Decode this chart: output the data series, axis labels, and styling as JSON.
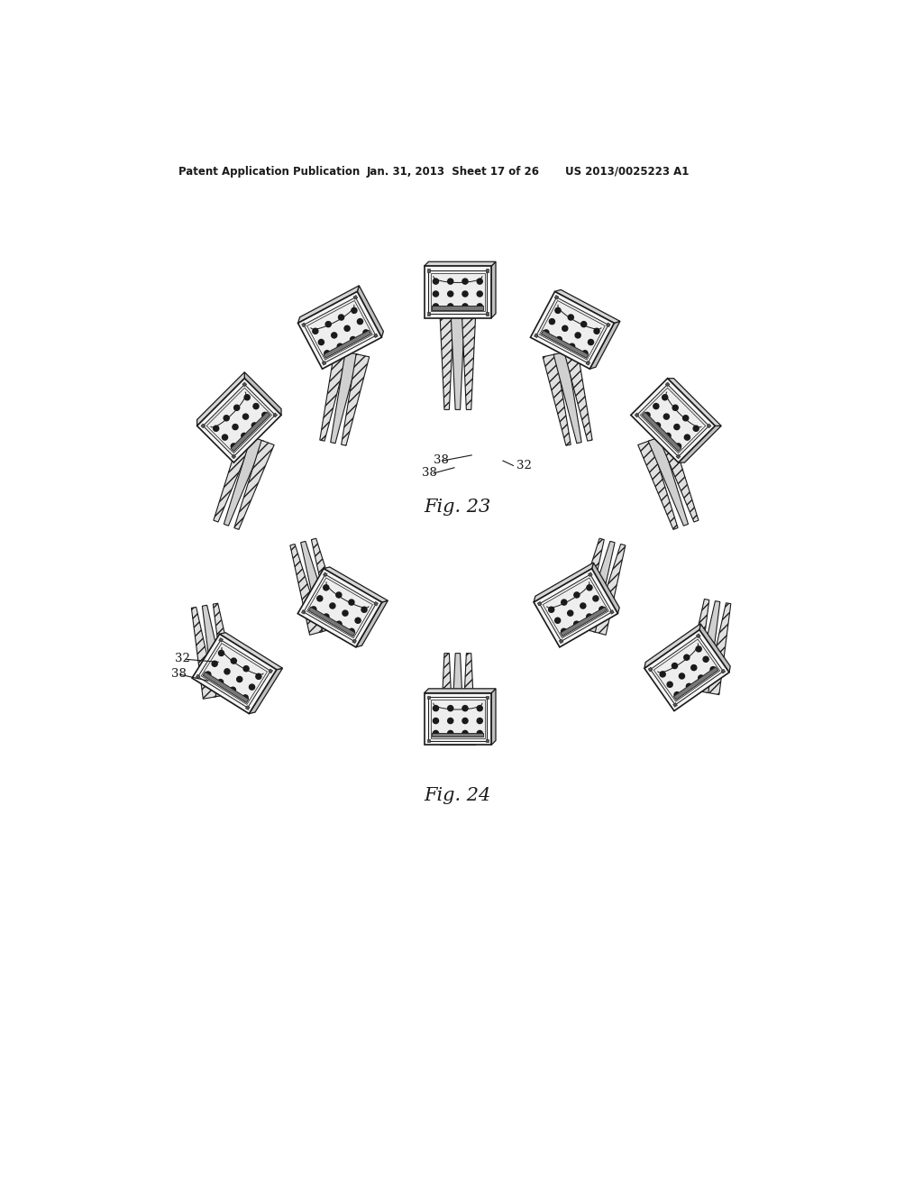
{
  "background_color": "#ffffff",
  "header_text": "Patent Application Publication",
  "header_date": "Jan. 31, 2013  Sheet 17 of 26",
  "header_patent": "US 2013/0025223 A1",
  "fig23_label": "Fig. 23",
  "fig24_label": "Fig. 24",
  "label_38a": "38",
  "label_38b": "38",
  "label_32a": "32",
  "label_32b": "32",
  "label_38c": "38",
  "text_color": "#1a1a1a",
  "line_color": "#1a1a1a",
  "dot_color": "#1a1a1a",
  "face_color": "#f5f5f5",
  "side_color": "#d8d8d8",
  "hatch_color": "#aaaaaa",
  "wedge_face": "#e8e8e8",
  "wedge_hatch": "#cccccc"
}
